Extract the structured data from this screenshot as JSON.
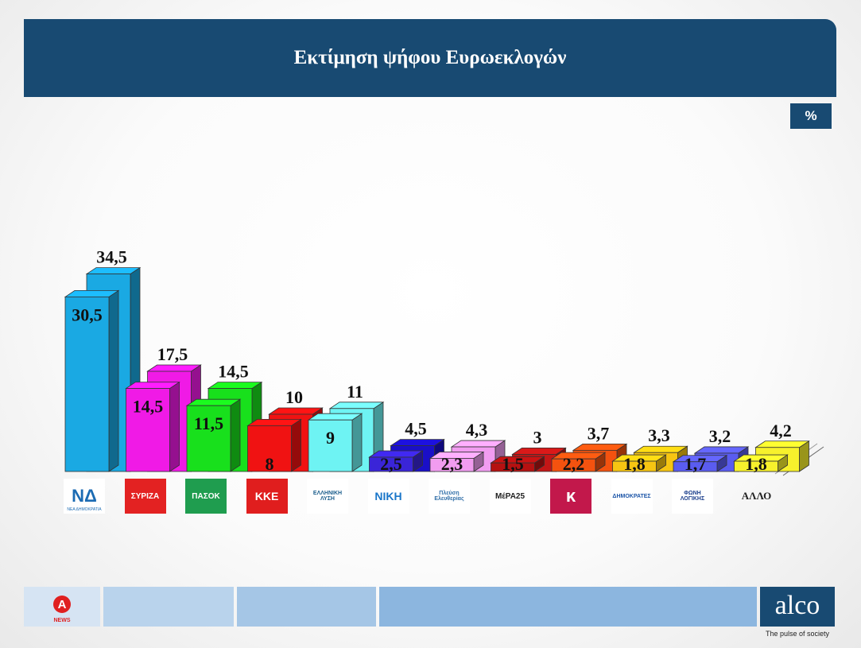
{
  "title": "Εκτίμηση ψήφου Ευρωεκλογών",
  "unit_badge": "%",
  "chart_data": {
    "type": "bar",
    "title": "Εκτίμηση ψήφου Ευρωεκλογών",
    "unit": "%",
    "categories": [
      "ΝΔ",
      "ΣΥΡΙΖΑ",
      "ΠΑΣΟΚ",
      "ΚΚΕ",
      "Ελληνική Λύση",
      "ΝΙΚΗ",
      "Πλεύση Ελευθερίας",
      "ΜέΡΑ25",
      "Κίνημα",
      "Δημοκράτες",
      "Φωνή Λογικής",
      "ΑΛΛΟ"
    ],
    "series": [
      {
        "values": [
          34.5,
          17.5,
          14.5,
          10,
          11,
          4.5,
          4.3,
          3,
          3.7,
          3.3,
          3.2,
          4.2
        ]
      },
      {
        "values": [
          30.5,
          14.5,
          11.5,
          8,
          9,
          2.5,
          2.3,
          1.5,
          2.2,
          1.8,
          1.7,
          1.8
        ]
      }
    ],
    "value_labels_back": [
      "34,5",
      "17,5",
      "14,5",
      "10",
      "11",
      "4,5",
      "4,3",
      "3",
      "3,7",
      "3,3",
      "3,2",
      "4,2"
    ],
    "value_labels_front": [
      "30,5",
      "14,5",
      "11,5",
      "8",
      "9",
      "2,5",
      "2,3",
      "1,5",
      "2,2",
      "1,8",
      "1,7",
      "1,8"
    ],
    "colors": {
      "front": [
        "#1aa9e3",
        "#f01ae6",
        "#18e01c",
        "#f01212",
        "#6ef3f3",
        "#3a25d8",
        "#f19cf0",
        "#b51111",
        "#f4520f",
        "#f6c512",
        "#5a5cf0",
        "#f7f12c"
      ],
      "back": [
        "#1aa9e3",
        "#f01ae6",
        "#18e01c",
        "#f01212",
        "#6ef3f3",
        "#1a0fc8",
        "#f19cf0",
        "#c31616",
        "#f4520f",
        "#f6c512",
        "#5a5cf0",
        "#f7f12c"
      ]
    }
  },
  "logos": [
    {
      "name": "ΝΔ",
      "text": "ΝΔ",
      "sub": "ΝΕΑ ΔΗΜΟΚΡΑΤΙΑ",
      "bg": "#ffffff",
      "fg": "#1b6bb3"
    },
    {
      "name": "ΣΥΡΙΖΑ",
      "text": "ΣΥΡΙΖΑ",
      "sub": "",
      "bg": "#e32222",
      "fg": "#ffffff"
    },
    {
      "name": "ΠΑΣΟΚ",
      "text": "ΠΑΣΟΚ",
      "sub": "",
      "bg": "#1f9d4f",
      "fg": "#ffffff"
    },
    {
      "name": "ΚΚΕ",
      "text": "ΚΚΕ",
      "sub": "",
      "bg": "#e01e1e",
      "fg": "#ffffff"
    },
    {
      "name": "Ελληνική Λύση",
      "text": "ΕΛΛΗΝΙΚΗ ΛΥΣΗ",
      "sub": "",
      "bg": "#ffffff",
      "fg": "#1b5e8c"
    },
    {
      "name": "ΝΙΚΗ",
      "text": "ΝΙΚΗ",
      "sub": "",
      "bg": "#ffffff",
      "fg": "#1a76c9"
    },
    {
      "name": "Πλεύση Ελευθερίας",
      "text": "Πλεύση Ελευθερίας",
      "sub": "",
      "bg": "#ffffff",
      "fg": "#2f6ea8"
    },
    {
      "name": "ΜέΡΑ25",
      "text": "ΜέΡΑ25",
      "sub": "",
      "bg": "#ffffff",
      "fg": "#222222"
    },
    {
      "name": "Κίνημα",
      "text": "κ",
      "sub": "",
      "bg": "#c2184b",
      "fg": "#ffffff"
    },
    {
      "name": "Δημοκράτες",
      "text": "ΔΗΜΟΚΡΑΤΕΣ",
      "sub": "",
      "bg": "#ffffff",
      "fg": "#1d56a8"
    },
    {
      "name": "Φωνή Λογικής",
      "text": "ΦΩΝΗ ΛΟΓΙΚΗΣ",
      "sub": "",
      "bg": "#ffffff",
      "fg": "#1b3f8c"
    },
    {
      "name": "ΑΛΛΟ",
      "text": "ΑΛΛΟ",
      "sub": "",
      "bg": "transparent",
      "fg": "#222222"
    }
  ],
  "footer": {
    "segments": [
      "#d6e4f3",
      "#b9d3ec",
      "#a5c6e6",
      "#8cb6df"
    ],
    "channel_logo_text": "NEWS",
    "alco_logo": "alco",
    "alco_tagline": "The pulse of society"
  }
}
